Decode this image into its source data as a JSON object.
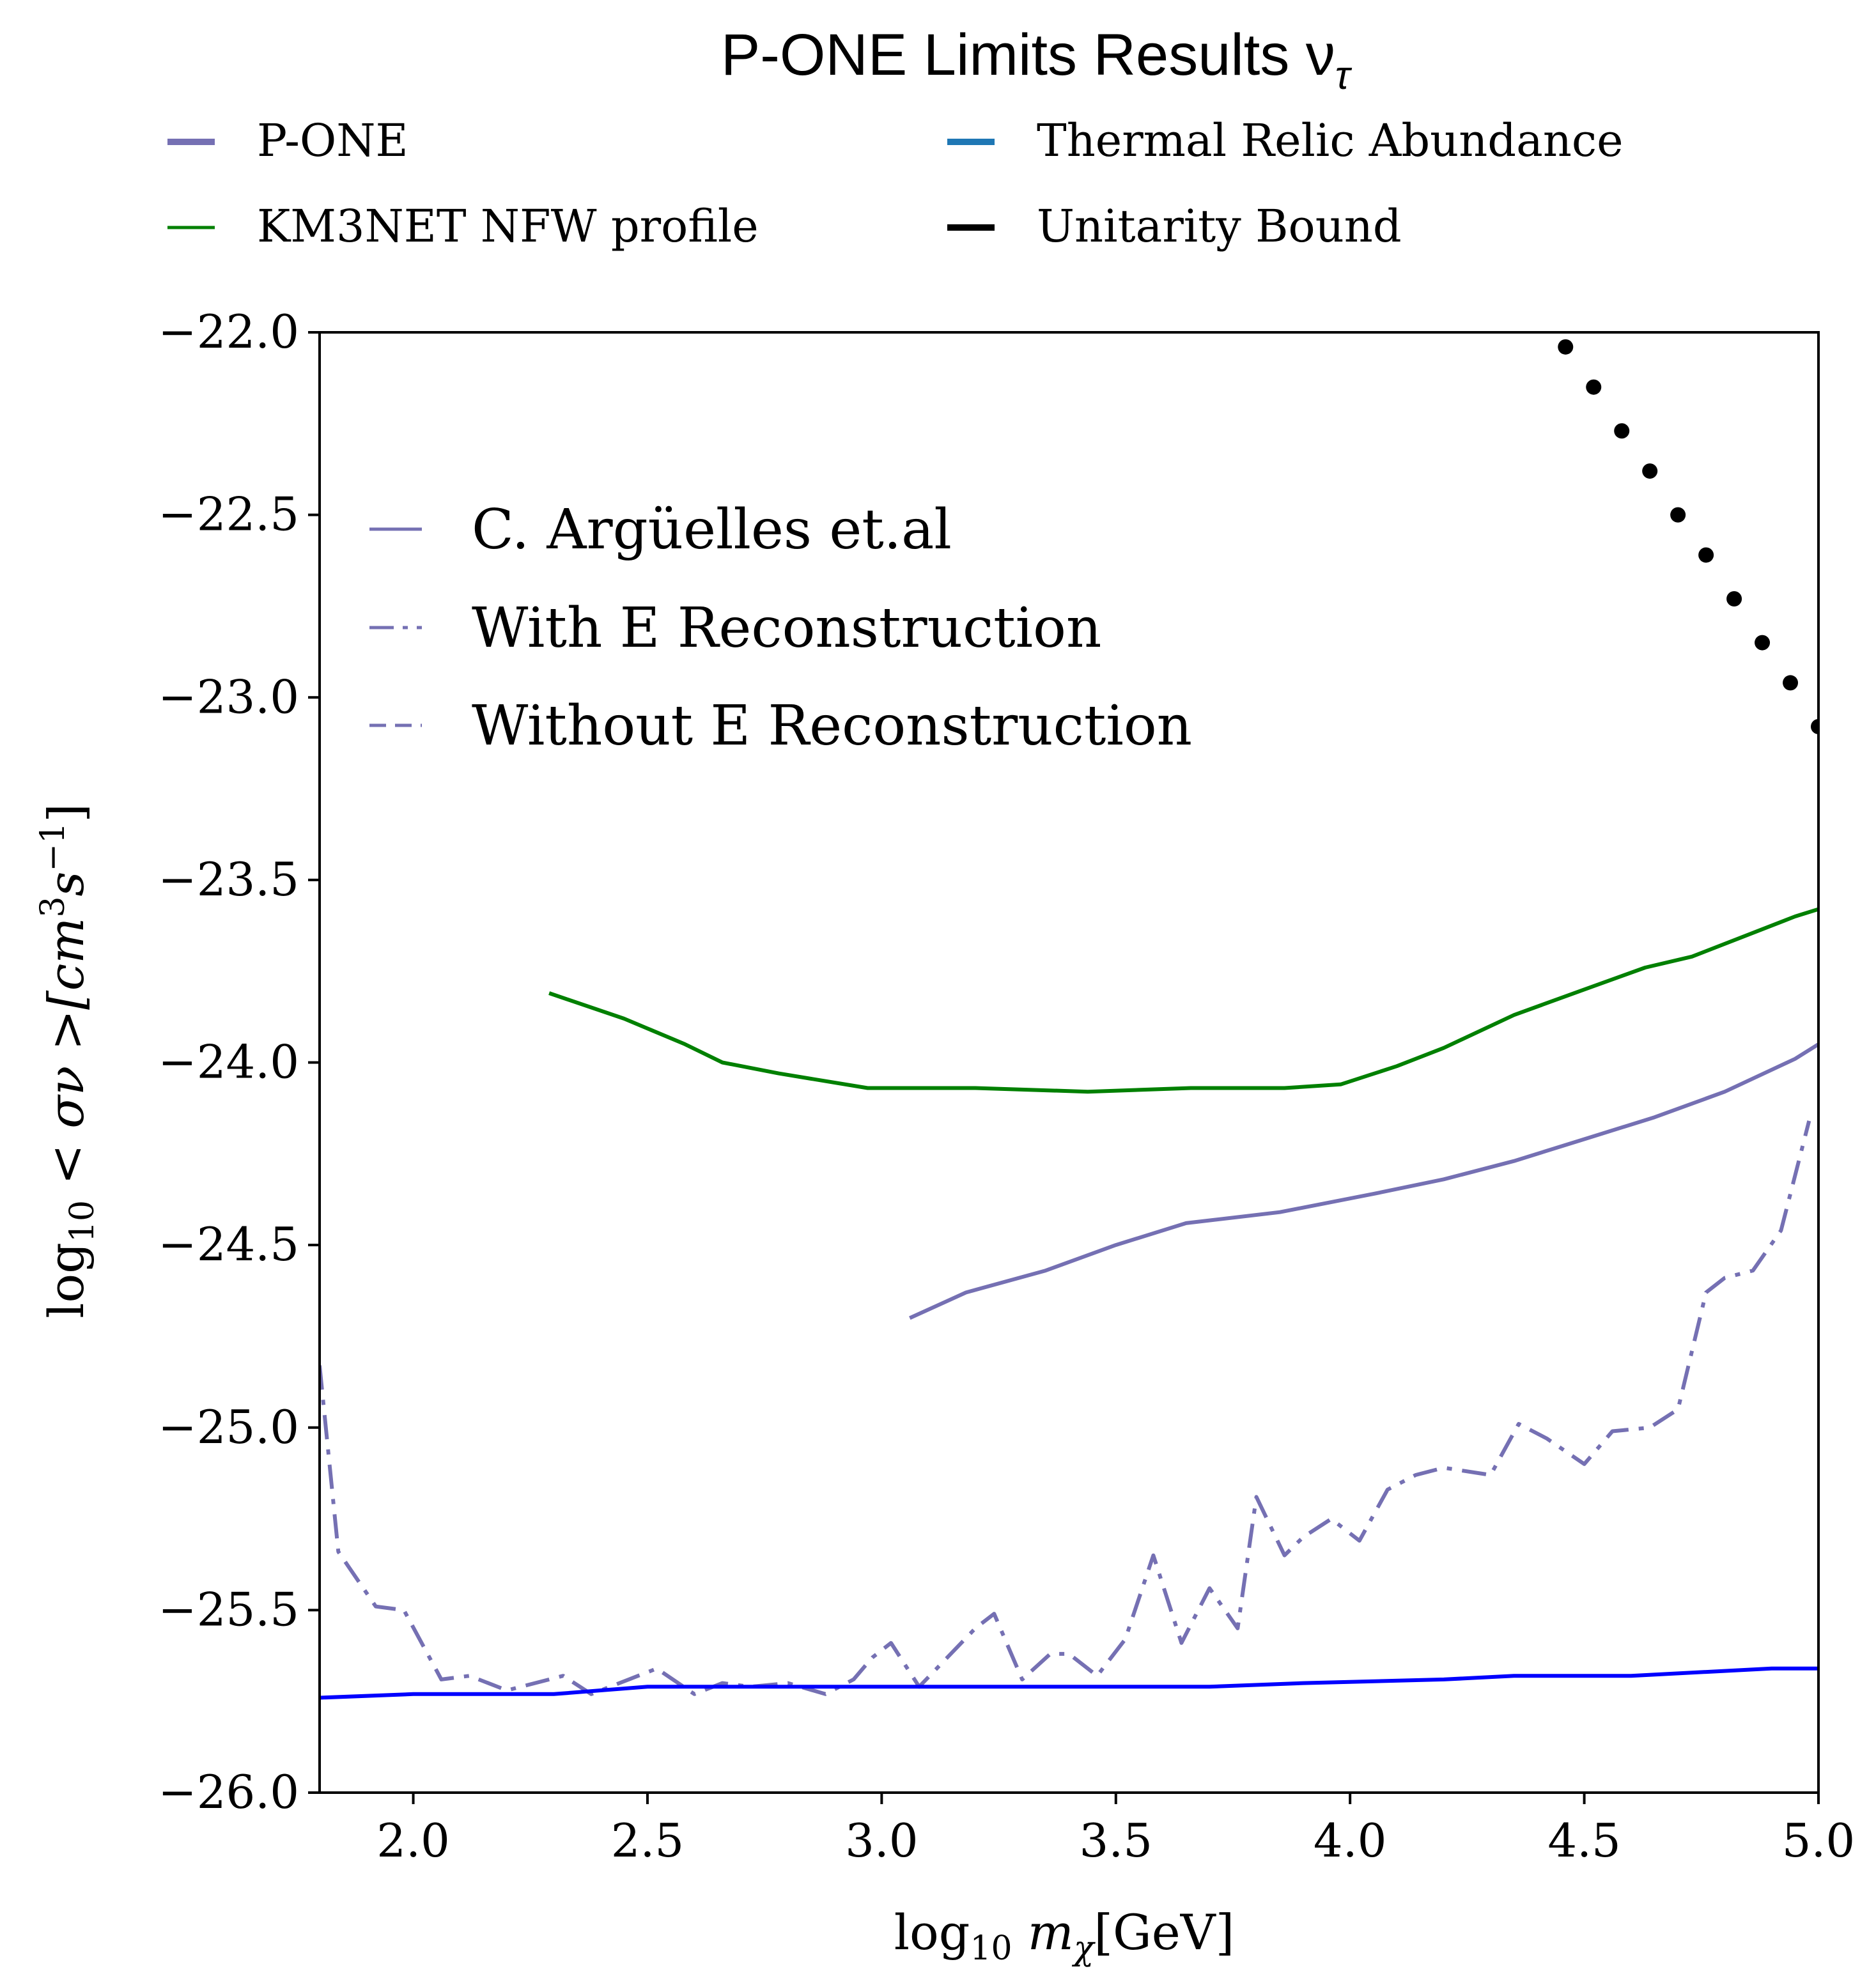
{
  "chart_data": {
    "type": "line",
    "title": "P-ONE Limits Results ν",
    "title_subscript": "τ",
    "xlabel": "log",
    "xlabel_sub": "10",
    "xlabel_rest": " m",
    "xlabel_sub2": "χ",
    "xlabel_unit": "[GeV]",
    "ylabel": "log",
    "ylabel_sub": "10",
    "ylabel_rest": " < σν >[cm",
    "ylabel_sup1": "3",
    "ylabel_mid": "s",
    "ylabel_sup2": "−1",
    "ylabel_end": "]",
    "xlim": [
      1.8,
      5.0
    ],
    "ylim": [
      -26.0,
      -22.0
    ],
    "xticks": [
      2.0,
      2.5,
      3.0,
      3.5,
      4.0,
      4.5,
      5.0
    ],
    "xtick_labels": [
      "2.0",
      "2.5",
      "3.0",
      "3.5",
      "4.0",
      "4.5",
      "5.0"
    ],
    "yticks": [
      -22.0,
      -22.5,
      -23.0,
      -23.5,
      -24.0,
      -24.5,
      -25.0,
      -25.5,
      -26.0
    ],
    "ytick_labels": [
      "−22.0",
      "−22.5",
      "−23.0",
      "−23.5",
      "−24.0",
      "−24.5",
      "−25.0",
      "−25.5",
      "−26.0"
    ],
    "grid": false,
    "legend_top": [
      {
        "label": "P-ONE",
        "color": "#7570b3",
        "style": "solid"
      },
      {
        "label": "Thermal Relic Abundance",
        "color": "#1f77b4",
        "style": "solid"
      },
      {
        "label": "KM3NET NFW profile",
        "color": "#008000",
        "style": "solid"
      },
      {
        "label": "Unitarity Bound",
        "color": "#000000",
        "style": "solid"
      }
    ],
    "legend_inner": [
      {
        "label": "C. Argüelles et.al",
        "color": "#7570b3",
        "style": "solid"
      },
      {
        "label": "With E Reconstruction",
        "color": "#7570b3",
        "style": "dashdot"
      },
      {
        "label": "Without E Reconstruction",
        "color": "#7570b3",
        "style": "dashed"
      }
    ],
    "series": [
      {
        "key": "km3net",
        "color": "#008000",
        "style": "solid",
        "x": [
          2.29,
          2.45,
          2.58,
          2.66,
          2.78,
          2.97,
          3.2,
          3.44,
          3.66,
          3.86,
          3.98,
          4.1,
          4.2,
          4.35,
          4.5,
          4.63,
          4.73,
          4.85,
          4.95,
          5.0
        ],
        "y": [
          -23.81,
          -23.88,
          -23.95,
          -24.0,
          -24.03,
          -24.07,
          -24.07,
          -24.08,
          -24.07,
          -24.07,
          -24.06,
          -24.01,
          -23.96,
          -23.87,
          -23.8,
          -23.74,
          -23.71,
          -23.65,
          -23.6,
          -23.58
        ]
      },
      {
        "key": "arguelles",
        "color": "#7570b3",
        "style": "solid",
        "x": [
          3.06,
          3.18,
          3.35,
          3.5,
          3.65,
          3.85,
          4.05,
          4.2,
          4.35,
          4.5,
          4.65,
          4.8,
          4.95,
          5.0
        ],
        "y": [
          -24.7,
          -24.63,
          -24.57,
          -24.5,
          -24.44,
          -24.41,
          -24.36,
          -24.32,
          -24.27,
          -24.21,
          -24.15,
          -24.08,
          -23.99,
          -23.95
        ]
      },
      {
        "key": "with_e_reco",
        "color": "#7570b3",
        "style": "dashdot",
        "x": [
          1.8,
          1.84,
          1.92,
          1.98,
          2.06,
          2.12,
          2.2,
          2.32,
          2.38,
          2.46,
          2.52,
          2.6,
          2.66,
          2.72,
          2.8,
          2.88,
          2.94,
          2.98,
          3.02,
          3.08,
          3.14,
          3.2,
          3.24,
          3.3,
          3.36,
          3.4,
          3.46,
          3.52,
          3.58,
          3.64,
          3.7,
          3.76,
          3.8,
          3.86,
          3.9,
          3.96,
          4.02,
          4.08,
          4.14,
          4.2,
          4.3,
          4.36,
          4.42,
          4.5,
          4.56,
          4.64,
          4.7,
          4.76,
          4.8,
          4.86,
          4.92,
          4.98
        ],
        "y": [
          -24.83,
          -25.34,
          -25.49,
          -25.5,
          -25.69,
          -25.68,
          -25.72,
          -25.68,
          -25.73,
          -25.69,
          -25.66,
          -25.73,
          -25.7,
          -25.71,
          -25.7,
          -25.73,
          -25.69,
          -25.63,
          -25.59,
          -25.71,
          -25.63,
          -25.55,
          -25.51,
          -25.69,
          -25.62,
          -25.62,
          -25.68,
          -25.58,
          -25.35,
          -25.59,
          -25.44,
          -25.55,
          -25.19,
          -25.35,
          -25.3,
          -25.25,
          -25.31,
          -25.17,
          -25.13,
          -25.11,
          -25.13,
          -24.99,
          -25.03,
          -25.1,
          -25.01,
          -25.0,
          -24.95,
          -24.63,
          -24.59,
          -24.57,
          -24.46,
          -24.16
        ]
      },
      {
        "key": "thermal_relic",
        "color": "#0000ff",
        "style": "solid",
        "x": [
          1.8,
          2.0,
          2.3,
          2.5,
          2.9,
          3.3,
          3.7,
          3.9,
          4.2,
          4.35,
          4.6,
          4.9,
          5.0
        ],
        "y": [
          -25.74,
          -25.73,
          -25.73,
          -25.71,
          -25.71,
          -25.71,
          -25.71,
          -25.7,
          -25.69,
          -25.68,
          -25.68,
          -25.66,
          -25.66
        ]
      },
      {
        "key": "unitarity",
        "color": "#000000",
        "style": "dots",
        "x": [
          4.46,
          4.52,
          4.58,
          4.64,
          4.7,
          4.76,
          4.82,
          4.88,
          4.94,
          5.0
        ],
        "y": [
          -22.04,
          -22.15,
          -22.27,
          -22.38,
          -22.5,
          -22.61,
          -22.73,
          -22.85,
          -22.96,
          -23.08
        ]
      }
    ]
  }
}
